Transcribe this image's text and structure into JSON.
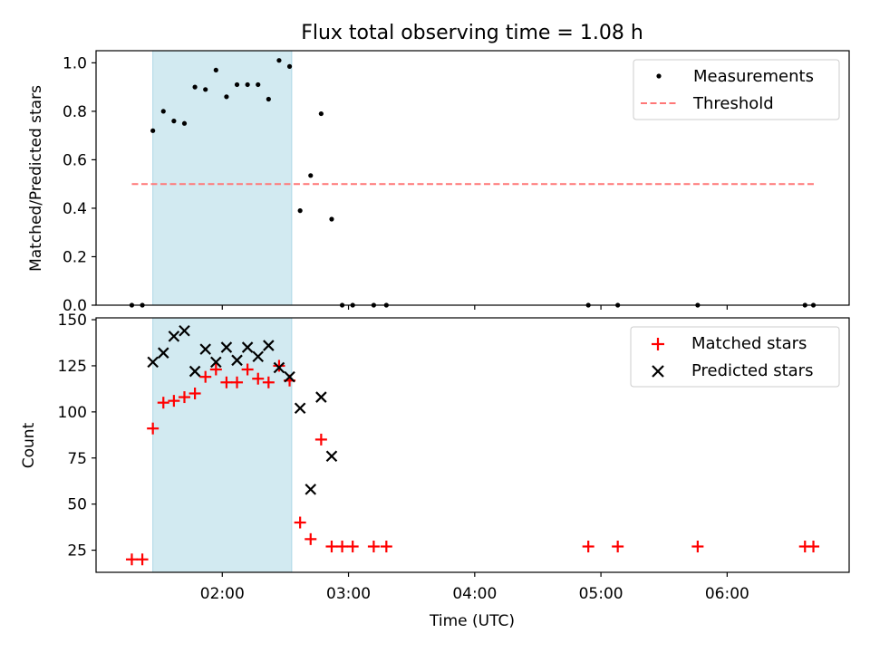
{
  "chart_data": [
    {
      "type": "scatter",
      "title": "Flux total observing time = 1.08 h",
      "ylabel": "Matched/Predicted stars",
      "xlabel": "",
      "xlim": [
        "01:00",
        "06:58"
      ],
      "ylim": [
        0,
        1.05
      ],
      "yticks": [
        0.0,
        0.2,
        0.4,
        0.6,
        0.8,
        1.0
      ],
      "ytick_labels": [
        "0.0",
        "0.2",
        "0.4",
        "0.6",
        "0.8",
        "1.0"
      ],
      "shaded_span": {
        "start": "01:27",
        "end": "02:33",
        "color": "#add8e6"
      },
      "threshold": {
        "value": 0.5,
        "start": "01:17",
        "end": "06:42",
        "color": "#ff7777"
      },
      "legend": {
        "placement": "top-right",
        "entries": [
          "Measurements",
          "Threshold"
        ]
      },
      "series": [
        {
          "name": "Measurements",
          "marker": "dot",
          "color": "#000000",
          "points": [
            [
              "01:17",
              0.0
            ],
            [
              "01:22",
              0.0
            ],
            [
              "01:27",
              0.72
            ],
            [
              "01:32",
              0.8
            ],
            [
              "01:37",
              0.76
            ],
            [
              "01:42",
              0.75
            ],
            [
              "01:47",
              0.9
            ],
            [
              "01:52",
              0.89
            ],
            [
              "01:57",
              0.97
            ],
            [
              "02:02",
              0.86
            ],
            [
              "02:07",
              0.91
            ],
            [
              "02:12",
              0.91
            ],
            [
              "02:17",
              0.91
            ],
            [
              "02:22",
              0.85
            ],
            [
              "02:27",
              1.01
            ],
            [
              "02:32",
              0.985
            ],
            [
              "02:37",
              0.39
            ],
            [
              "02:42",
              0.535
            ],
            [
              "02:47",
              0.79
            ],
            [
              "02:52",
              0.355
            ],
            [
              "02:57",
              0.0
            ],
            [
              "03:02",
              0.0
            ],
            [
              "03:12",
              0.0
            ],
            [
              "03:18",
              0.0
            ],
            [
              "04:54",
              0.0
            ],
            [
              "05:08",
              0.0
            ],
            [
              "05:46",
              0.0
            ],
            [
              "06:37",
              0.0
            ],
            [
              "06:41",
              0.0
            ]
          ]
        }
      ]
    },
    {
      "type": "scatter",
      "title": "",
      "xlabel": "Time (UTC)",
      "ylabel": "Count",
      "xlim": [
        "01:00",
        "06:58"
      ],
      "ylim": [
        13,
        151
      ],
      "xticks": [
        "02:00",
        "03:00",
        "04:00",
        "05:00",
        "06:00"
      ],
      "yticks": [
        25,
        50,
        75,
        100,
        125,
        150
      ],
      "ytick_labels": [
        "25",
        "50",
        "75",
        "100",
        "125",
        "150"
      ],
      "shaded_span": {
        "start": "01:27",
        "end": "02:33",
        "color": "#add8e6"
      },
      "legend": {
        "placement": "top-right",
        "entries": [
          "Matched stars",
          "Predicted stars"
        ]
      },
      "series": [
        {
          "name": "Matched stars",
          "marker": "plus",
          "color": "#ff0000",
          "points": [
            [
              "01:17",
              20
            ],
            [
              "01:22",
              20
            ],
            [
              "01:27",
              91
            ],
            [
              "01:32",
              105
            ],
            [
              "01:37",
              106
            ],
            [
              "01:42",
              108
            ],
            [
              "01:47",
              110
            ],
            [
              "01:52",
              119
            ],
            [
              "01:57",
              123
            ],
            [
              "02:02",
              116
            ],
            [
              "02:07",
              116
            ],
            [
              "02:12",
              123
            ],
            [
              "02:17",
              118
            ],
            [
              "02:22",
              116
            ],
            [
              "02:27",
              125
            ],
            [
              "02:32",
              117
            ],
            [
              "02:37",
              40
            ],
            [
              "02:42",
              31
            ],
            [
              "02:47",
              85
            ],
            [
              "02:52",
              27
            ],
            [
              "02:57",
              27
            ],
            [
              "03:02",
              27
            ],
            [
              "03:12",
              27
            ],
            [
              "03:18",
              27
            ],
            [
              "04:54",
              27
            ],
            [
              "05:08",
              27
            ],
            [
              "05:46",
              27
            ],
            [
              "06:37",
              27
            ],
            [
              "06:41",
              27
            ]
          ]
        },
        {
          "name": "Predicted stars",
          "marker": "x",
          "color": "#000000",
          "points": [
            [
              "01:27",
              127
            ],
            [
              "01:32",
              132
            ],
            [
              "01:37",
              141
            ],
            [
              "01:42",
              144
            ],
            [
              "01:47",
              122
            ],
            [
              "01:52",
              134
            ],
            [
              "01:57",
              127
            ],
            [
              "02:02",
              135
            ],
            [
              "02:07",
              128
            ],
            [
              "02:12",
              135
            ],
            [
              "02:17",
              130
            ],
            [
              "02:22",
              136
            ],
            [
              "02:27",
              124
            ],
            [
              "02:32",
              119
            ],
            [
              "02:37",
              102
            ],
            [
              "02:42",
              58
            ],
            [
              "02:47",
              108
            ],
            [
              "02:52",
              76
            ]
          ]
        }
      ]
    }
  ]
}
